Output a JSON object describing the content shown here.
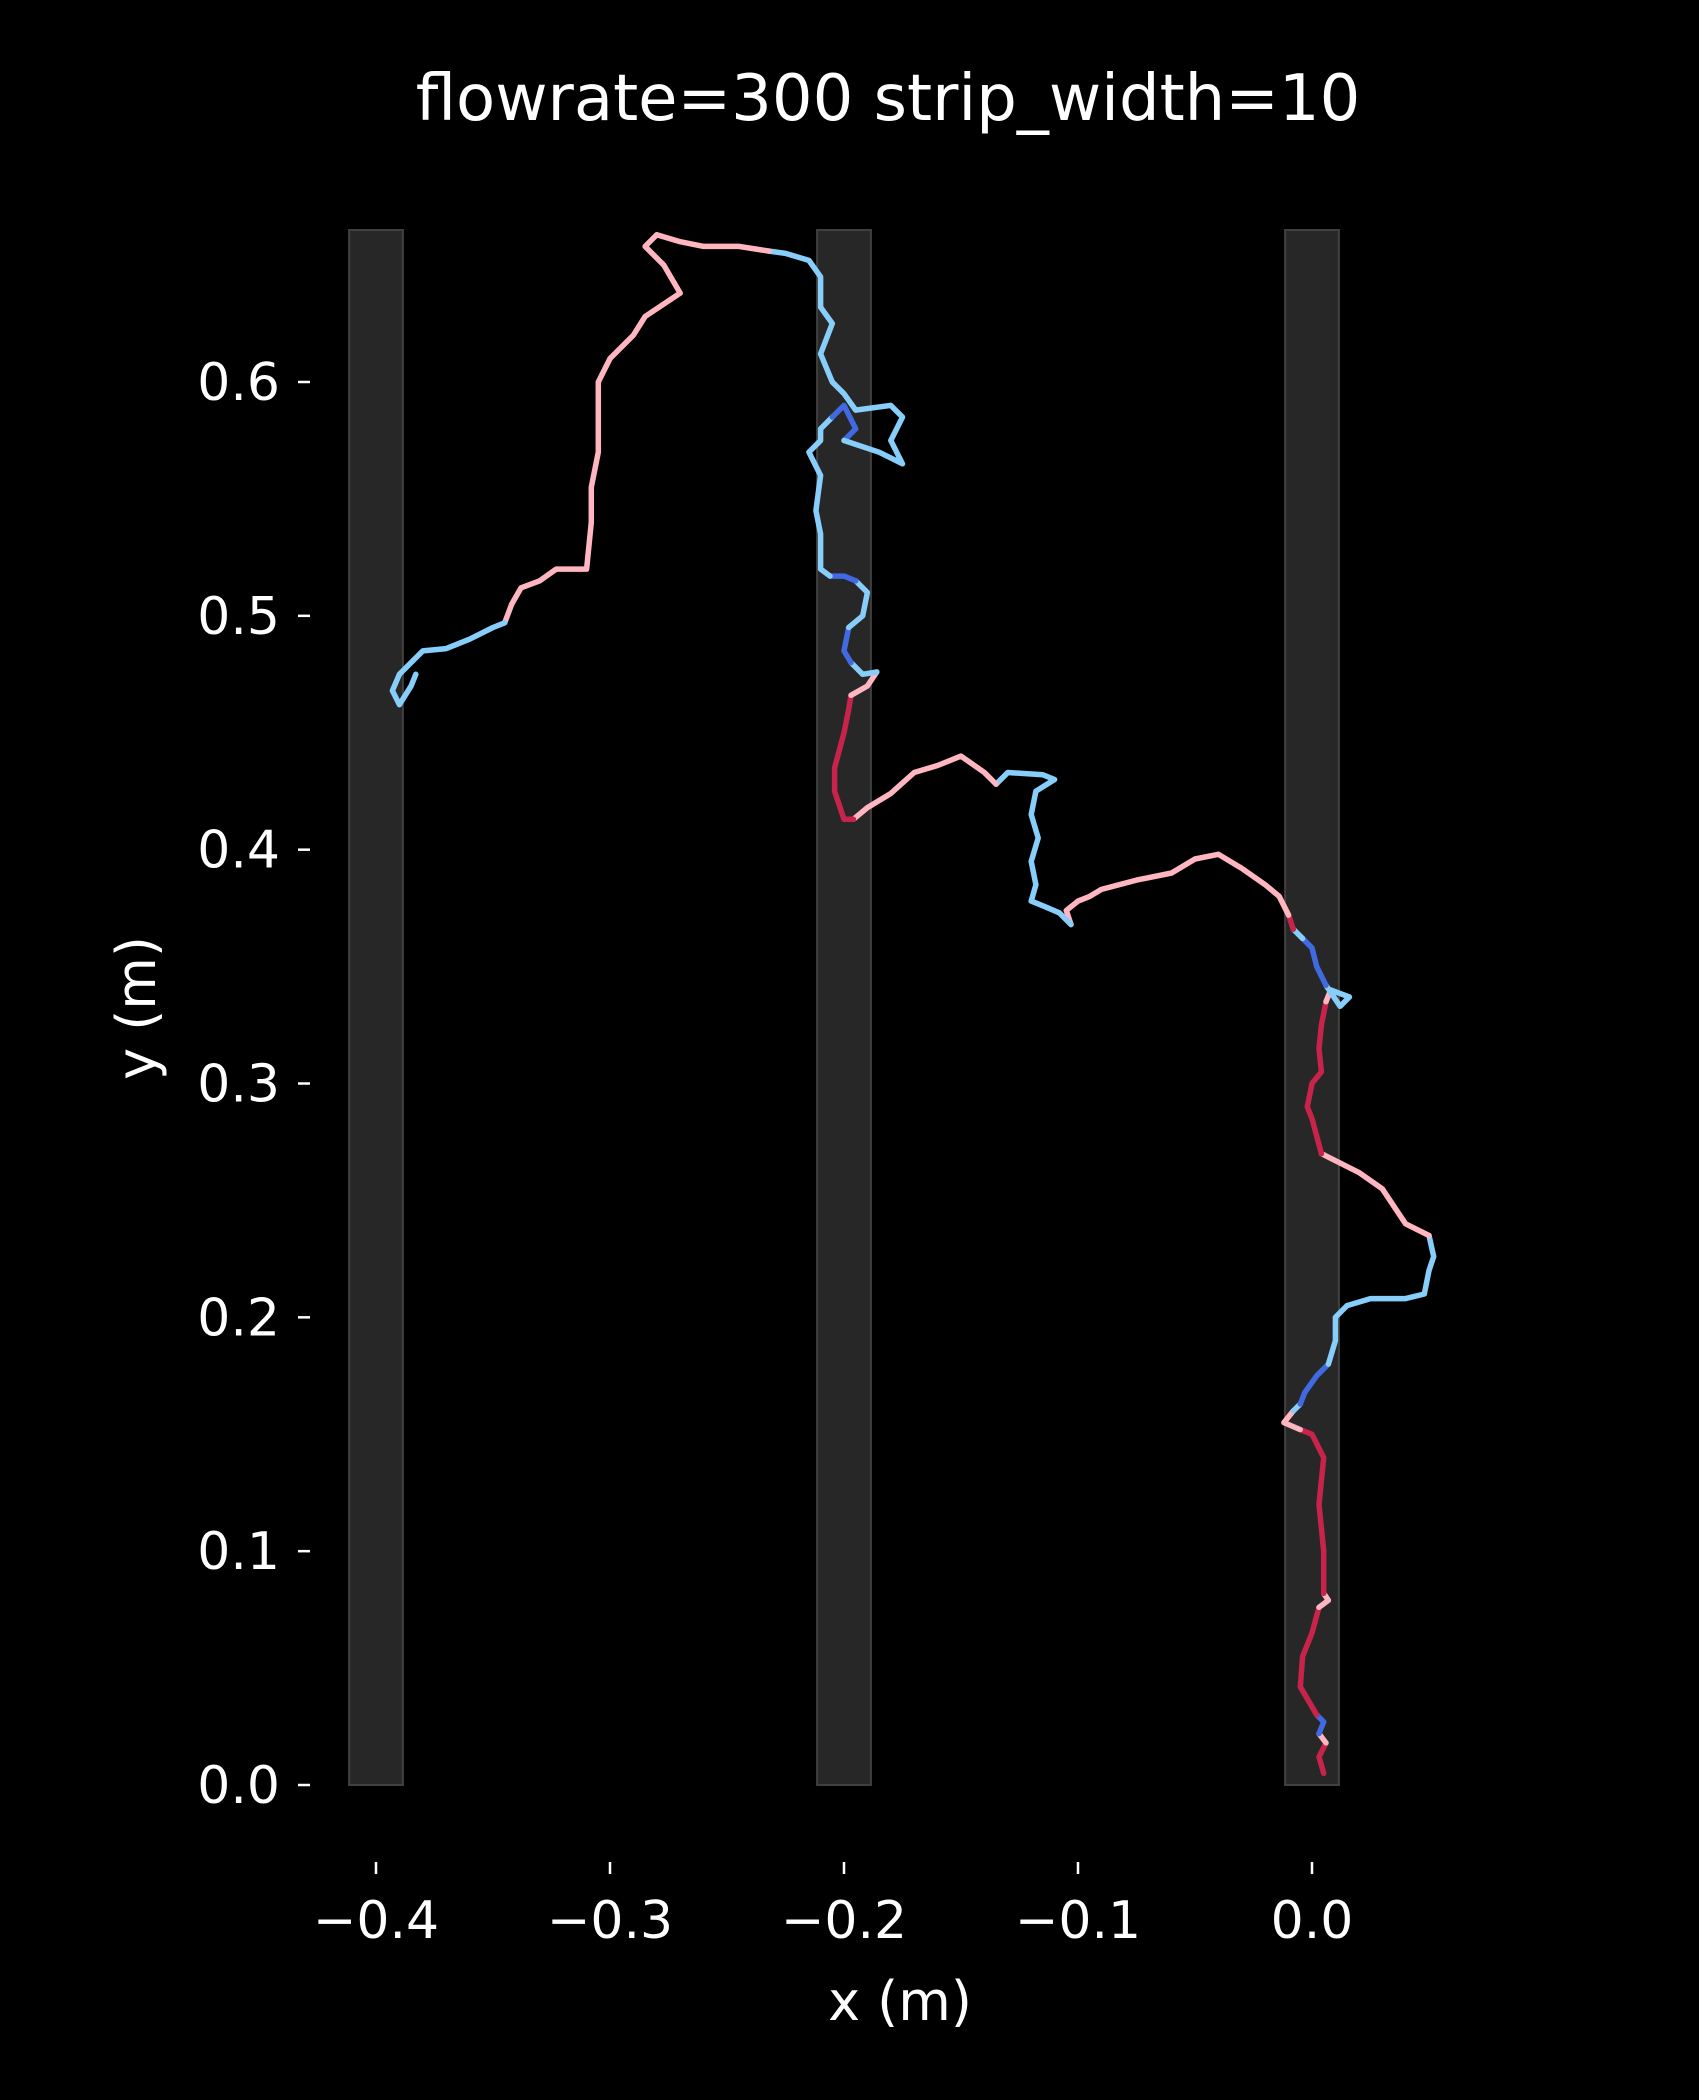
{
  "chart_data": {
    "type": "line",
    "title": "flowrate=300 strip_width=10",
    "xlabel": "x (m)",
    "ylabel": "y (m)",
    "xlim": [
      -0.44,
      0.07
    ],
    "ylim": [
      -0.02,
      0.67
    ],
    "xticks": [
      -0.4,
      -0.3,
      -0.2,
      -0.1,
      0.0
    ],
    "xtick_labels": [
      "−0.4",
      "−0.3",
      "−0.2",
      "−0.1",
      "0.0"
    ],
    "yticks": [
      0.0,
      0.1,
      0.2,
      0.3,
      0.4,
      0.5,
      0.6
    ],
    "ytick_labels": [
      "0.0",
      "0.1",
      "0.2",
      "0.3",
      "0.4",
      "0.5",
      "0.6"
    ],
    "grid": false,
    "strips": [
      {
        "x_center": -0.4,
        "width": 0.01
      },
      {
        "x_center": -0.2,
        "width": 0.01
      },
      {
        "x_center": 0.0,
        "width": 0.01
      }
    ],
    "state_colors": {
      "on_strip_upwind": "#c8234a",
      "off_strip_upwind": "#ffb6c1",
      "off_strip_downwind": "#87cefa",
      "on_strip_downwind": "#4169e1"
    },
    "track_segments": [
      {
        "state": "on_strip_upwind",
        "points": [
          [
            0.005,
            0.005
          ],
          [
            0.003,
            0.012
          ],
          [
            0.006,
            0.018
          ]
        ]
      },
      {
        "state": "off_strip_upwind",
        "points": [
          [
            0.006,
            0.018
          ],
          [
            0.003,
            0.022
          ]
        ]
      },
      {
        "state": "on_strip_downwind",
        "points": [
          [
            0.003,
            0.022
          ],
          [
            0.005,
            0.027
          ],
          [
            0.002,
            0.03
          ]
        ]
      },
      {
        "state": "on_strip_upwind",
        "points": [
          [
            0.002,
            0.03
          ],
          [
            -0.005,
            0.042
          ],
          [
            -0.004,
            0.055
          ],
          [
            0.0,
            0.065
          ],
          [
            0.003,
            0.076
          ]
        ]
      },
      {
        "state": "off_strip_upwind",
        "points": [
          [
            0.003,
            0.076
          ],
          [
            0.007,
            0.079
          ],
          [
            0.005,
            0.082
          ]
        ]
      },
      {
        "state": "on_strip_upwind",
        "points": [
          [
            0.005,
            0.082
          ],
          [
            0.005,
            0.1
          ],
          [
            0.003,
            0.12
          ],
          [
            0.005,
            0.14
          ],
          [
            0.0,
            0.15
          ],
          [
            -0.005,
            0.152
          ]
        ]
      },
      {
        "state": "off_strip_upwind",
        "points": [
          [
            -0.005,
            0.152
          ],
          [
            -0.012,
            0.155
          ],
          [
            -0.008,
            0.16
          ]
        ]
      },
      {
        "state": "off_strip_downwind",
        "points": [
          [
            -0.008,
            0.16
          ],
          [
            -0.005,
            0.163
          ]
        ]
      },
      {
        "state": "on_strip_downwind",
        "points": [
          [
            -0.005,
            0.163
          ],
          [
            -0.003,
            0.168
          ],
          [
            0.002,
            0.175
          ],
          [
            0.007,
            0.18
          ]
        ]
      },
      {
        "state": "off_strip_downwind",
        "points": [
          [
            0.007,
            0.18
          ],
          [
            0.01,
            0.19
          ],
          [
            0.01,
            0.2
          ],
          [
            0.015,
            0.205
          ],
          [
            0.025,
            0.208
          ],
          [
            0.04,
            0.208
          ],
          [
            0.048,
            0.21
          ],
          [
            0.05,
            0.22
          ],
          [
            0.052,
            0.226
          ],
          [
            0.05,
            0.235
          ]
        ]
      },
      {
        "state": "off_strip_upwind",
        "points": [
          [
            0.05,
            0.235
          ],
          [
            0.04,
            0.24
          ],
          [
            0.03,
            0.255
          ],
          [
            0.02,
            0.262
          ],
          [
            0.008,
            0.268
          ],
          [
            0.004,
            0.27
          ]
        ]
      },
      {
        "state": "on_strip_upwind",
        "points": [
          [
            0.004,
            0.27
          ],
          [
            0.0,
            0.285
          ],
          [
            -0.002,
            0.29
          ],
          [
            0.0,
            0.3
          ],
          [
            0.004,
            0.305
          ],
          [
            0.003,
            0.315
          ],
          [
            0.004,
            0.325
          ],
          [
            0.006,
            0.335
          ]
        ]
      },
      {
        "state": "off_strip_upwind",
        "points": [
          [
            0.006,
            0.335
          ],
          [
            0.008,
            0.34
          ]
        ]
      },
      {
        "state": "off_strip_downwind",
        "points": [
          [
            0.008,
            0.34
          ],
          [
            0.016,
            0.337
          ],
          [
            0.012,
            0.333
          ],
          [
            0.006,
            0.342
          ]
        ]
      },
      {
        "state": "on_strip_downwind",
        "points": [
          [
            0.006,
            0.342
          ],
          [
            0.002,
            0.35
          ],
          [
            0.0,
            0.358
          ],
          [
            -0.004,
            0.362
          ]
        ]
      },
      {
        "state": "off_strip_downwind",
        "points": [
          [
            -0.004,
            0.362
          ],
          [
            -0.008,
            0.366
          ]
        ]
      },
      {
        "state": "on_strip_upwind",
        "points": [
          [
            -0.008,
            0.366
          ],
          [
            -0.01,
            0.372
          ]
        ]
      },
      {
        "state": "off_strip_upwind",
        "points": [
          [
            -0.01,
            0.372
          ],
          [
            -0.014,
            0.38
          ],
          [
            -0.02,
            0.385
          ],
          [
            -0.03,
            0.392
          ],
          [
            -0.04,
            0.398
          ],
          [
            -0.05,
            0.396
          ],
          [
            -0.06,
            0.39
          ],
          [
            -0.075,
            0.387
          ],
          [
            -0.09,
            0.383
          ],
          [
            -0.095,
            0.38
          ],
          [
            -0.1,
            0.378
          ],
          [
            -0.105,
            0.374
          ],
          [
            -0.103,
            0.368
          ]
        ]
      },
      {
        "state": "off_strip_downwind",
        "points": [
          [
            -0.103,
            0.368
          ],
          [
            -0.108,
            0.373
          ],
          [
            -0.115,
            0.376
          ],
          [
            -0.12,
            0.378
          ],
          [
            -0.118,
            0.385
          ],
          [
            -0.12,
            0.395
          ],
          [
            -0.117,
            0.405
          ],
          [
            -0.12,
            0.415
          ],
          [
            -0.118,
            0.425
          ],
          [
            -0.11,
            0.43
          ],
          [
            -0.115,
            0.432
          ],
          [
            -0.13,
            0.433
          ],
          [
            -0.135,
            0.428
          ]
        ]
      },
      {
        "state": "off_strip_upwind",
        "points": [
          [
            -0.135,
            0.428
          ],
          [
            -0.14,
            0.433
          ],
          [
            -0.15,
            0.44
          ],
          [
            -0.16,
            0.436
          ],
          [
            -0.17,
            0.433
          ],
          [
            -0.18,
            0.424
          ],
          [
            -0.19,
            0.418
          ],
          [
            -0.196,
            0.413
          ]
        ]
      },
      {
        "state": "on_strip_upwind",
        "points": [
          [
            -0.196,
            0.413
          ],
          [
            -0.2,
            0.413
          ],
          [
            -0.204,
            0.425
          ],
          [
            -0.204,
            0.435
          ],
          [
            -0.2,
            0.45
          ],
          [
            -0.198,
            0.46
          ],
          [
            -0.197,
            0.466
          ]
        ]
      },
      {
        "state": "off_strip_upwind",
        "points": [
          [
            -0.197,
            0.466
          ],
          [
            -0.19,
            0.47
          ],
          [
            -0.186,
            0.476
          ]
        ]
      },
      {
        "state": "off_strip_downwind",
        "points": [
          [
            -0.186,
            0.476
          ],
          [
            -0.192,
            0.475
          ],
          [
            -0.197,
            0.48
          ]
        ]
      },
      {
        "state": "on_strip_downwind",
        "points": [
          [
            -0.197,
            0.48
          ],
          [
            -0.2,
            0.485
          ],
          [
            -0.198,
            0.495
          ]
        ]
      },
      {
        "state": "off_strip_downwind",
        "points": [
          [
            -0.198,
            0.495
          ],
          [
            -0.192,
            0.5
          ],
          [
            -0.19,
            0.51
          ],
          [
            -0.195,
            0.515
          ]
        ]
      },
      {
        "state": "on_strip_downwind",
        "points": [
          [
            -0.195,
            0.515
          ],
          [
            -0.2,
            0.517
          ],
          [
            -0.206,
            0.517
          ]
        ]
      },
      {
        "state": "off_strip_downwind",
        "points": [
          [
            -0.206,
            0.517
          ],
          [
            -0.21,
            0.52
          ],
          [
            -0.21,
            0.535
          ],
          [
            -0.212,
            0.545
          ],
          [
            -0.21,
            0.56
          ],
          [
            -0.215,
            0.57
          ],
          [
            -0.21,
            0.575
          ],
          [
            -0.21,
            0.58
          ],
          [
            -0.205,
            0.585
          ]
        ]
      },
      {
        "state": "on_strip_downwind",
        "points": [
          [
            -0.205,
            0.585
          ],
          [
            -0.2,
            0.59
          ],
          [
            -0.195,
            0.58
          ],
          [
            -0.2,
            0.575
          ]
        ]
      },
      {
        "state": "off_strip_downwind",
        "points": [
          [
            -0.2,
            0.575
          ],
          [
            -0.185,
            0.57
          ],
          [
            -0.175,
            0.565
          ],
          [
            -0.18,
            0.575
          ],
          [
            -0.175,
            0.585
          ],
          [
            -0.18,
            0.59
          ],
          [
            -0.195,
            0.588
          ],
          [
            -0.2,
            0.595
          ],
          [
            -0.205,
            0.6
          ],
          [
            -0.21,
            0.612
          ],
          [
            -0.205,
            0.625
          ],
          [
            -0.21,
            0.632
          ],
          [
            -0.21,
            0.645
          ],
          [
            -0.215,
            0.652
          ],
          [
            -0.225,
            0.655
          ],
          [
            -0.232,
            0.656
          ]
        ]
      },
      {
        "state": "off_strip_upwind",
        "points": [
          [
            -0.232,
            0.656
          ],
          [
            -0.245,
            0.658
          ],
          [
            -0.26,
            0.658
          ],
          [
            -0.27,
            0.66
          ],
          [
            -0.28,
            0.663
          ],
          [
            -0.285,
            0.658
          ],
          [
            -0.277,
            0.65
          ],
          [
            -0.27,
            0.638
          ],
          [
            -0.285,
            0.628
          ],
          [
            -0.29,
            0.62
          ],
          [
            -0.3,
            0.61
          ],
          [
            -0.305,
            0.6
          ],
          [
            -0.305,
            0.585
          ],
          [
            -0.305,
            0.57
          ],
          [
            -0.308,
            0.555
          ],
          [
            -0.308,
            0.54
          ],
          [
            -0.31,
            0.52
          ],
          [
            -0.323,
            0.52
          ],
          [
            -0.33,
            0.515
          ],
          [
            -0.338,
            0.512
          ],
          [
            -0.342,
            0.505
          ],
          [
            -0.345,
            0.497
          ]
        ]
      },
      {
        "state": "off_strip_downwind",
        "points": [
          [
            -0.345,
            0.497
          ],
          [
            -0.35,
            0.495
          ],
          [
            -0.36,
            0.49
          ],
          [
            -0.37,
            0.486
          ],
          [
            -0.38,
            0.485
          ],
          [
            -0.385,
            0.48
          ],
          [
            -0.39,
            0.475
          ],
          [
            -0.393,
            0.468
          ],
          [
            -0.39,
            0.462
          ],
          [
            -0.385,
            0.47
          ],
          [
            -0.383,
            0.475
          ]
        ]
      }
    ]
  }
}
